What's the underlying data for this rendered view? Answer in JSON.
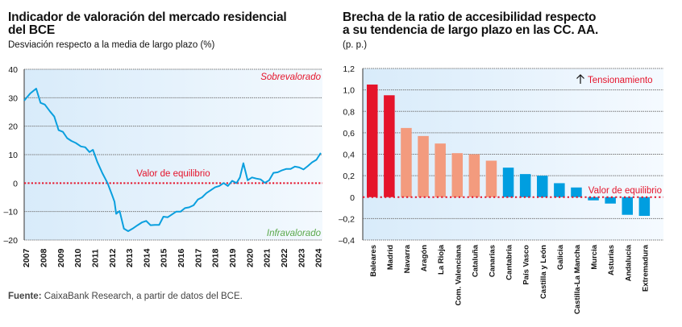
{
  "left": {
    "title_line1": "Indicador de valoración del mercado residencial",
    "title_line2": "del BCE",
    "subtitle": "Desviación respecto a la media de largo plazo (%)"
  },
  "right": {
    "title_line1": "Brecha de la ratio de accesibilidad respecto",
    "title_line2": "a su tendencia de largo plazo en las CC. AA.",
    "subtitle": "(p. p.)"
  },
  "source": {
    "label": "Fuente:",
    "text": " CaixaBank Research, a partir de datos del BCE."
  },
  "colors": {
    "line": "#0a9fde",
    "equilibrium": "#e5142b",
    "over_label": "#e5142b",
    "under_label": "#5aa84a",
    "bar_strong": "#e5142b",
    "bar_mid": "#f39b7e",
    "bar_blue": "#009ee0",
    "plot_bg_left": "#dcedfa",
    "plot_bg_right": "#f4f9fe"
  },
  "chart_data": [
    {
      "type": "line",
      "title": "Indicador de valoración del mercado residencial del BCE",
      "ylabel": "Desviación respecto a la media de largo plazo (%)",
      "xlabel": "",
      "ylim": [
        -20,
        40
      ],
      "yticks": [
        40,
        30,
        20,
        10,
        0,
        -10,
        -20
      ],
      "ytick_labels": [
        "40",
        "30",
        "20",
        "10",
        "0",
        "–10",
        "–20"
      ],
      "xlim": [
        2006.9,
        2024.25
      ],
      "xticks": [
        2007,
        2008,
        2009,
        2010,
        2011,
        2012,
        2013,
        2014,
        2015,
        2016,
        2017,
        2018,
        2019,
        2020,
        2021,
        2022,
        2023,
        2024
      ],
      "xtick_labels": [
        "2007",
        "2008",
        "2009",
        "2010",
        "2011",
        "2012",
        "2013",
        "2014",
        "2015",
        "2016",
        "2017",
        "2018",
        "2019",
        "2020",
        "2021",
        "2022",
        "2023",
        "2024"
      ],
      "grid": true,
      "annotations": {
        "over": "Sobrevalorado",
        "under": "Infravalorado",
        "equilibrium": "Valor de equilibrio"
      },
      "series": [
        {
          "name": "Indicador de valoración",
          "x": [
            2006.9,
            2007.25,
            2007.6,
            2007.85,
            2008.1,
            2008.4,
            2008.65,
            2008.9,
            2009.15,
            2009.4,
            2009.65,
            2009.9,
            2010.2,
            2010.45,
            2010.7,
            2010.9,
            2011.15,
            2011.45,
            2011.75,
            2012.0,
            2012.15,
            2012.25,
            2012.45,
            2012.7,
            2012.95,
            2013.2,
            2013.5,
            2013.75,
            2014.0,
            2014.25,
            2014.5,
            2014.75,
            2015.0,
            2015.25,
            2015.5,
            2015.75,
            2016.0,
            2016.25,
            2016.5,
            2016.75,
            2017.0,
            2017.25,
            2017.5,
            2017.75,
            2018.0,
            2018.25,
            2018.5,
            2018.75,
            2019.0,
            2019.25,
            2019.45,
            2019.65,
            2019.9,
            2020.15,
            2020.4,
            2020.65,
            2020.9,
            2021.15,
            2021.4,
            2021.65,
            2021.9,
            2022.15,
            2022.4,
            2022.65,
            2022.9,
            2023.15,
            2023.4,
            2023.65,
            2023.9,
            2024.15
          ],
          "values": [
            29,
            31.5,
            33.2,
            28.2,
            27.6,
            25.2,
            23.4,
            18.6,
            18.0,
            15.8,
            14.8,
            14.1,
            12.9,
            12.6,
            10.9,
            11.7,
            7.5,
            3.5,
            0,
            -4,
            -6.5,
            -10.8,
            -9.8,
            -16,
            -16.9,
            -16,
            -14.8,
            -13.8,
            -13.3,
            -14.8,
            -14.7,
            -14.7,
            -11.8,
            -12,
            -11,
            -10,
            -10,
            -8.8,
            -8.5,
            -7.8,
            -5.8,
            -5,
            -3.5,
            -2.5,
            -1.5,
            -1,
            0,
            -1,
            0.8,
            0,
            2,
            7,
            1,
            2,
            1.6,
            1.3,
            0.1,
            1,
            3.6,
            3.8,
            4.5,
            5,
            5,
            5.8,
            5.5,
            4.8,
            6,
            7.3,
            8.2,
            10.6
          ]
        }
      ]
    },
    {
      "type": "bar",
      "title": "Brecha de la ratio de accesibilidad respecto a su tendencia de largo plazo en las CC. AA.",
      "ylabel": "(p. p.)",
      "xlabel": "",
      "ylim": [
        -0.4,
        1.2
      ],
      "yticks": [
        1.2,
        1.0,
        0.8,
        0.6,
        0.4,
        0.2,
        0,
        -0.2,
        -0.4
      ],
      "ytick_labels": [
        "1,2",
        "1,0",
        "0,8",
        "0,6",
        "0,4",
        "0,2",
        "0",
        "–0,2",
        "–0,4"
      ],
      "grid": true,
      "annotations": {
        "up": "Tensionamiento",
        "equilibrium": "Valor de equilibrio"
      },
      "categories": [
        "Baleares",
        "Madrid",
        "Navarra",
        "Aragón",
        "La Rioja",
        "Com. Valenciana",
        "Cataluña",
        "Canarias",
        "Cantabria",
        "País Vasco",
        "Castilla y León",
        "Galicia",
        "Castilla-La Mancha",
        "Murcia",
        "Asturias",
        "Andalucía",
        "Extremadura"
      ],
      "values": [
        1.05,
        0.95,
        0.645,
        0.57,
        0.5,
        0.41,
        0.4,
        0.34,
        0.275,
        0.215,
        0.2,
        0.13,
        0.09,
        -0.03,
        -0.06,
        -0.165,
        -0.175
      ],
      "color_groups": [
        "strong",
        "strong",
        "mid",
        "mid",
        "mid",
        "mid",
        "mid",
        "mid",
        "blue",
        "blue",
        "blue",
        "blue",
        "blue",
        "blue",
        "blue",
        "blue",
        "blue"
      ]
    }
  ]
}
